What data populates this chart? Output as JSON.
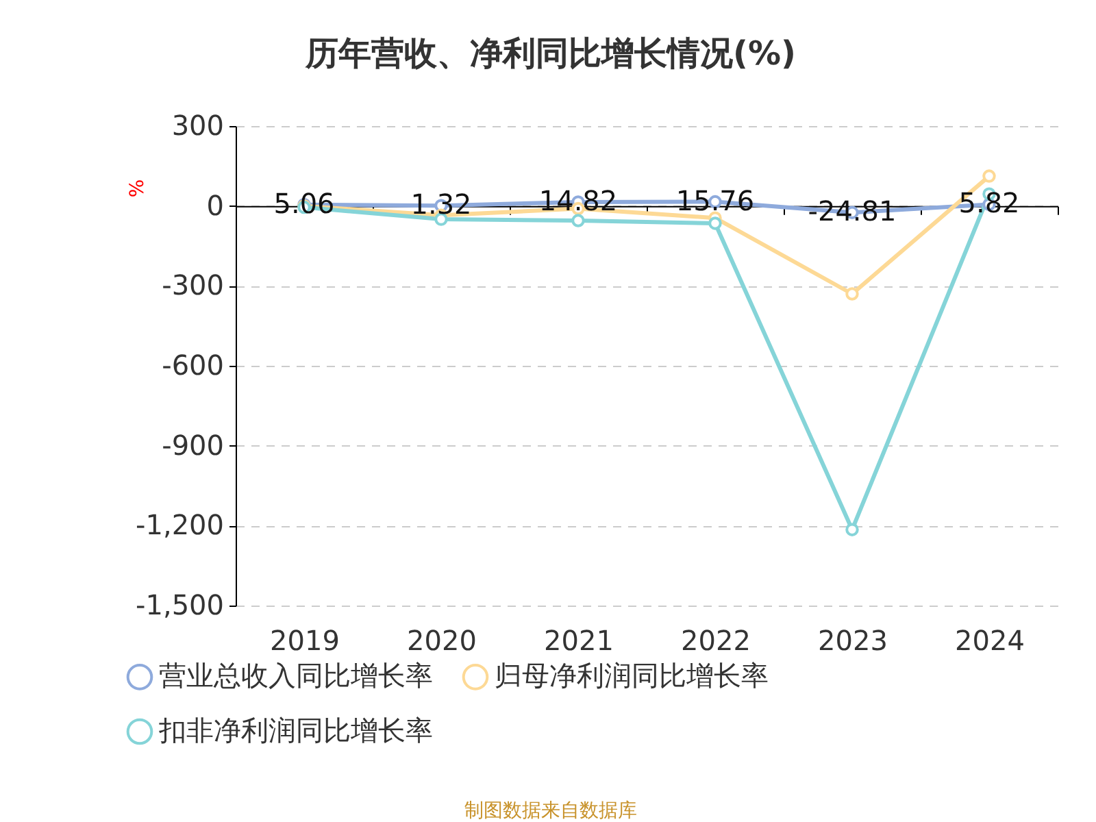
{
  "chart_data": {
    "type": "line",
    "title": "历年营收、净利同比增长情况(%)",
    "ylabel": "%",
    "categories": [
      "2019",
      "2020",
      "2021",
      "2022",
      "2023",
      "2024"
    ],
    "series": [
      {
        "name": "营业总收入同比增长率",
        "color": "#8eaadc",
        "values": [
          5.06,
          1.32,
          14.82,
          15.76,
          -24.81,
          5.82
        ],
        "value_labels": [
          "5.06",
          "1.32",
          "14.82",
          "15.76",
          "-24.81",
          "5.82"
        ]
      },
      {
        "name": "归母净利润同比增长率",
        "color": "#fdd995",
        "values": [
          0,
          -35,
          -10,
          -45,
          -330,
          112
        ]
      },
      {
        "name": "扣非净利润同比增长率",
        "color": "#85d4d8",
        "values": [
          -5,
          -50,
          -55,
          -65,
          -1215,
          45
        ]
      }
    ],
    "ylim": [
      -1500,
      300
    ],
    "yticks": [
      300,
      0,
      -300,
      -600,
      -900,
      {
        "value": -1200,
        "label": "-1,200"
      },
      {
        "value": -1500,
        "label": "-1,500"
      }
    ],
    "grid": "y",
    "legend": "bottom",
    "marker": "circle",
    "line_style": "solid",
    "annotations": [
      "制图数据来自数据库"
    ]
  }
}
